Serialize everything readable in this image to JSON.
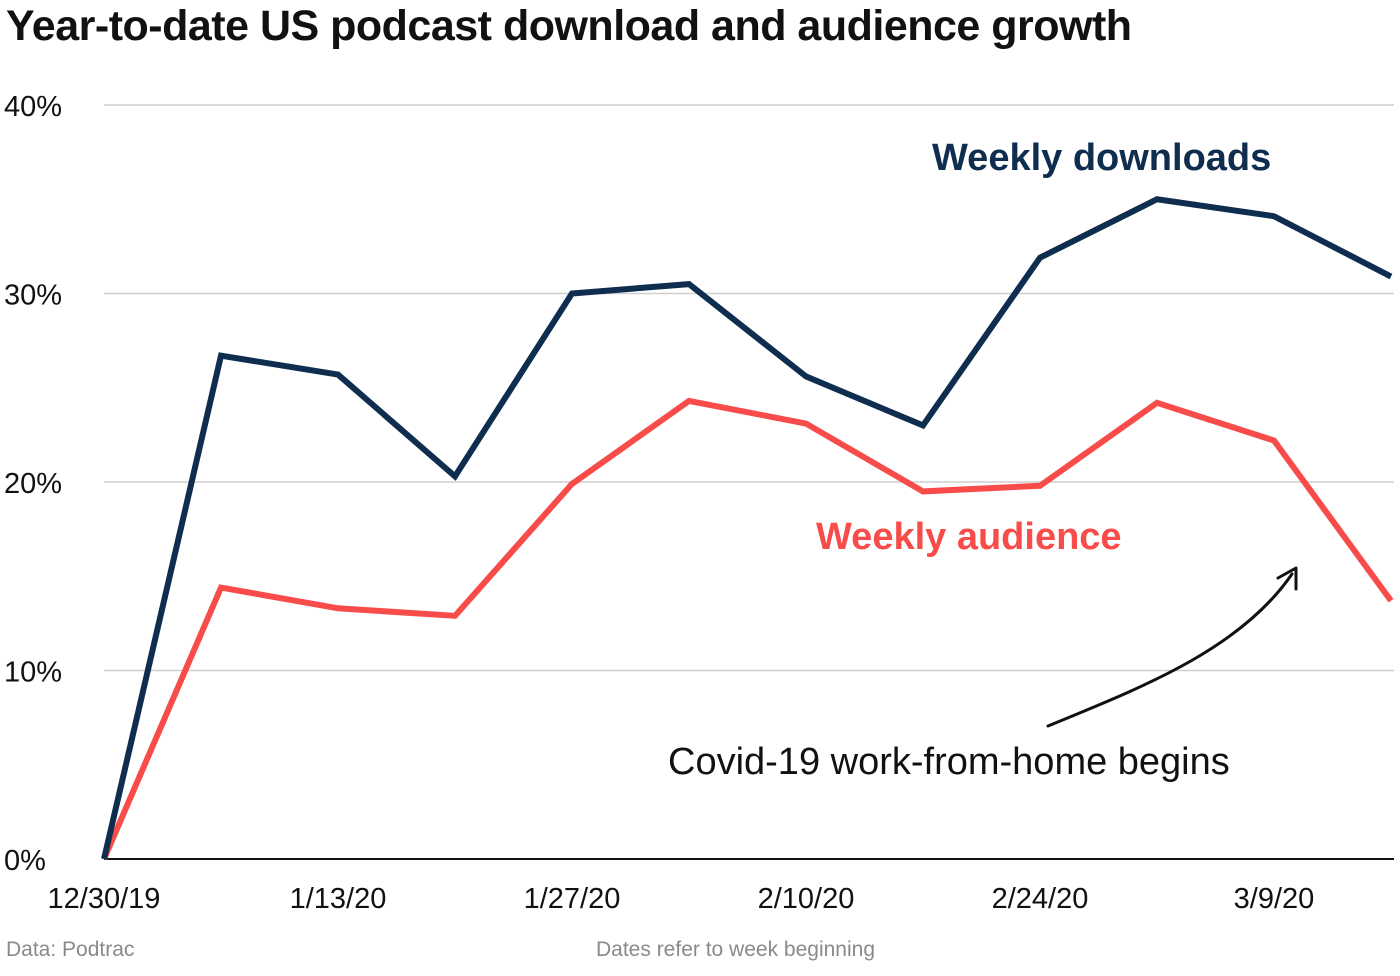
{
  "chart_data": {
    "type": "line",
    "title": "Year-to-date US podcast download and audience growth",
    "x": [
      "12/30/19",
      "1/6/20",
      "1/13/20",
      "1/20/20",
      "1/27/20",
      "2/3/20",
      "2/10/20",
      "2/17/20",
      "2/24/20",
      "3/2/20",
      "3/9/20",
      "3/16/20"
    ],
    "x_tick_labels": [
      "12/30/19",
      "1/13/20",
      "1/27/20",
      "2/10/20",
      "2/24/20",
      "3/9/20"
    ],
    "y_tick_labels": [
      "0%",
      "10%",
      "20%",
      "30%",
      "40%"
    ],
    "y_ticks": [
      0,
      10,
      20,
      30,
      40
    ],
    "ylim": [
      0,
      40
    ],
    "y_unit": "%",
    "grid": true,
    "series": [
      {
        "name": "Weekly downloads",
        "color": "#0f2d4f",
        "values": [
          0,
          26.7,
          25.7,
          20.3,
          30.0,
          30.5,
          25.6,
          23.0,
          31.9,
          35.0,
          34.1,
          30.9
        ]
      },
      {
        "name": "Weekly audience",
        "color": "#f84c4a",
        "values": [
          0,
          14.4,
          13.3,
          12.9,
          19.9,
          24.3,
          23.1,
          19.5,
          19.8,
          24.2,
          22.2,
          13.7
        ]
      }
    ],
    "annotations": [
      {
        "text": "Covid-19 work-from-home begins",
        "color": "#111111"
      }
    ],
    "source": "Data: Podtrac",
    "note": "Dates refer to week beginning"
  }
}
